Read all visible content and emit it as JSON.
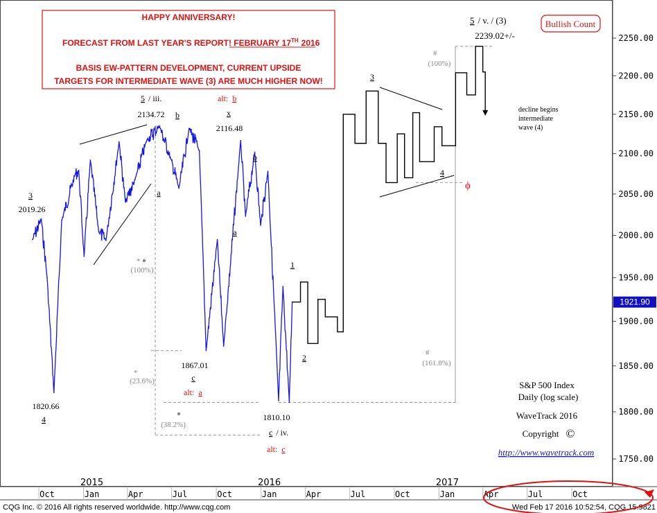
{
  "chart_data": {
    "type": "line",
    "title": "S&P 500 Index",
    "subtitle": "Daily (log scale)",
    "source": "WaveTrack 2016",
    "copyright": "Copyright",
    "copyright_symbol": "©",
    "url": "http://www.wavetrack.com",
    "y_scale": "log",
    "ylim": [
      1705,
      2285
    ],
    "y_ticks": [
      "2250.00",
      "2200.00",
      "2150.00",
      "2100.00",
      "2050.00",
      "2000.00",
      "1950.00",
      "1900.00",
      "1850.00",
      "1800.00",
      "1750.00"
    ],
    "y_tick_values": [
      2250,
      2200,
      2150,
      2100,
      2050,
      2000,
      1950,
      1900,
      1850,
      1800,
      1750
    ],
    "last_price": "1921.90",
    "last_price_value": 1921.9,
    "x_month_labels": [
      "Oct",
      "Jan",
      "Apr",
      "Jul",
      "Oct",
      "Jan",
      "Apr",
      "Jul",
      "Oct",
      "Jan",
      "Apr",
      "Jul",
      "Oct"
    ],
    "x_year_labels": [
      "2015",
      "2016",
      "2017"
    ],
    "price_series": {
      "name": "S&P 500",
      "color": "#1515e6",
      "points": [
        [
          "2014-09-01",
          1995
        ],
        [
          "2014-09-19",
          2019.26
        ],
        [
          "2014-10-01",
          1950
        ],
        [
          "2014-10-15",
          1820.66
        ],
        [
          "2014-10-31",
          2018
        ],
        [
          "2014-11-28",
          2075
        ],
        [
          "2014-12-05",
          2079
        ],
        [
          "2014-12-16",
          1975
        ],
        [
          "2014-12-29",
          2092
        ],
        [
          "2015-01-15",
          2005
        ],
        [
          "2015-01-30",
          1994
        ],
        [
          "2015-02-26",
          2115
        ],
        [
          "2015-03-11",
          2040
        ],
        [
          "2015-03-31",
          2068
        ],
        [
          "2015-04-24",
          2117
        ],
        [
          "2015-05-20",
          2134.72
        ],
        [
          "2015-06-12",
          2094
        ],
        [
          "2015-06-29",
          2057
        ],
        [
          "2015-07-20",
          2132
        ],
        [
          "2015-08-10",
          2104
        ],
        [
          "2015-08-24",
          1867.01
        ],
        [
          "2015-09-16",
          1995
        ],
        [
          "2015-09-29",
          1872
        ],
        [
          "2015-11-03",
          2116.48
        ],
        [
          "2015-11-13",
          2023
        ],
        [
          "2015-12-02",
          2102
        ],
        [
          "2015-12-14",
          2012
        ],
        [
          "2015-12-29",
          2078
        ],
        [
          "2016-01-20",
          1812
        ],
        [
          "2016-01-29",
          1940
        ],
        [
          "2016-02-11",
          1810.1
        ],
        [
          "2016-02-17",
          1921.9
        ]
      ]
    },
    "forecast_path": {
      "name": "Forecast path",
      "color": "#000000",
      "points": [
        [
          "2016-02-17",
          1921.9
        ],
        [
          "2016-03-05",
          1945
        ],
        [
          "2016-03-20",
          1875
        ],
        [
          "2016-04-10",
          1925
        ],
        [
          "2016-04-25",
          1905
        ],
        [
          "2016-05-20",
          1888
        ],
        [
          "2016-06-01",
          2150
        ],
        [
          "2016-06-25",
          2113
        ],
        [
          "2016-07-18",
          2180
        ],
        [
          "2016-08-12",
          2113
        ],
        [
          "2016-08-28",
          2064
        ],
        [
          "2016-09-20",
          2125
        ],
        [
          "2016-10-05",
          2070
        ],
        [
          "2016-10-22",
          2152
        ],
        [
          "2016-11-05",
          2090
        ],
        [
          "2016-12-05",
          2134
        ],
        [
          "2016-12-21",
          2110
        ],
        [
          "2017-01-18",
          2204
        ],
        [
          "2017-02-10",
          2175
        ],
        [
          "2017-02-28",
          2239.02
        ],
        [
          "2017-03-15",
          2205
        ],
        [
          "2017-03-20",
          2150
        ]
      ]
    },
    "header_box": {
      "lines": [
        "HAPPY ANNIVERSARY!",
        "FORECAST FROM LAST YEAR'S REPORT! FEBRUARY 17",
        "TH",
        "2016",
        "BASIS EW-PATTERN DEVELOPMENT, CURRENT UPSIDE",
        "TARGETS FOR INTERMEDIATE WAVE (3) ARE MUCH HIGHER NOW!"
      ]
    },
    "bullish_count_label": "Bullish Count",
    "top_right_label": {
      "a": "5",
      "b": "/ v. / (3)",
      "value": "2239.02+/-"
    },
    "annotations": {
      "w3_old": "3",
      "w3_old_value": "2019.26",
      "w4_value": "1820.66",
      "w4": "4",
      "w5_iii": "5",
      "w5_iii_suffix": "/ iii.",
      "w5_iii_value": "2134.72",
      "b1": "b",
      "a1": "a",
      "alt_b_prefix": "alt:",
      "alt_b": "b",
      "x_label": "x",
      "x_value": "2116.48",
      "b2": "b",
      "a2": "a",
      "c1_value": "1867.01",
      "c1": "c",
      "alt_a_prefix": "alt:",
      "alt_a": "a",
      "c2_value": "1810.10",
      "c2": "c",
      "c2_suffix": "/ iv.",
      "alt_c_prefix": "alt:",
      "alt_c": "c",
      "f1": "1",
      "f2": "2",
      "f3": "3",
      "f4": "4",
      "phi": "ϕ",
      "decline_text": [
        "decline begins",
        "intermediate",
        "wave (4)"
      ],
      "fib_star_1": "*",
      "fib_100_1": "(100%)",
      "fib_star_2": "*",
      "fib_236": "(23.6%)",
      "fib_382": "(38.2%)",
      "fib_hash_1": "#",
      "fib_100_2": "(100%)",
      "fib_hash_2": "#",
      "fib_1618": "(161.8%)"
    },
    "footer_left": "CQG Inc. © 2016 All rights reserved worldwide.  http://www.cqg.com",
    "footer_right": "Wed Feb 17 2016 10:52:54, CQG 15.9821",
    "colors": {
      "price": "#1515e6",
      "forecast": "#000000",
      "accent_red": "#e01010",
      "fib_grey": "#888888"
    }
  }
}
